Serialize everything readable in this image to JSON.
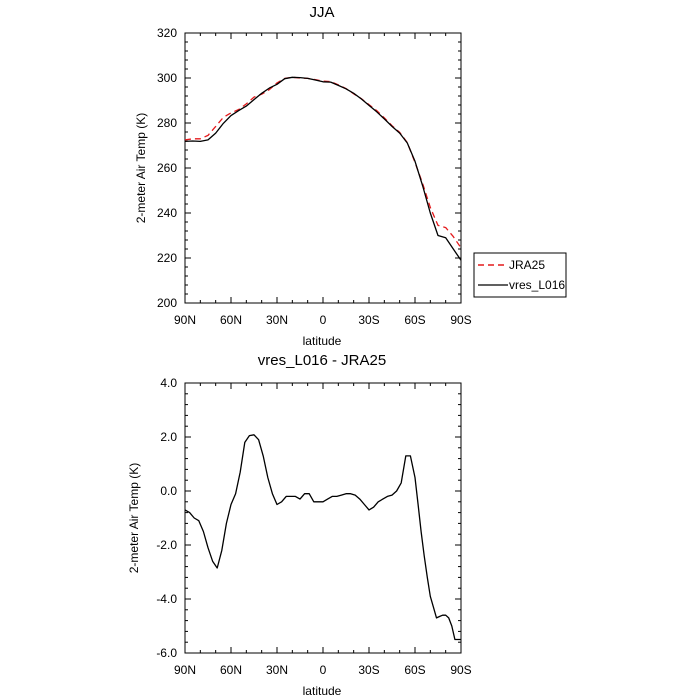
{
  "chart_data": [
    {
      "type": "line",
      "title": "JJA",
      "xlabel": "latitude",
      "ylabel": "2-meter Air Temp (K)",
      "ylim": [
        200,
        320
      ],
      "yticks": [
        "200",
        "220",
        "240",
        "260",
        "280",
        "300",
        "320"
      ],
      "xticks": [
        "90N",
        "60N",
        "30N",
        "0",
        "30S",
        "60S",
        "90S"
      ],
      "legend": {
        "placement": "right",
        "entries": [
          "JRA25",
          "vres_L016"
        ]
      },
      "series": [
        {
          "name": "JRA25",
          "color": "#e41a1c",
          "style": "dashed",
          "x": [
            90,
            85,
            80,
            75,
            70,
            65,
            60,
            55,
            50,
            45,
            40,
            35,
            30,
            25,
            20,
            15,
            10,
            5,
            0,
            -5,
            -10,
            -15,
            -20,
            -25,
            -30,
            -35,
            -40,
            -45,
            -50,
            -55,
            -60,
            -65,
            -70,
            -75,
            -80,
            -85,
            -90
          ],
          "y": [
            272.5,
            273.0,
            273.0,
            274.5,
            278.5,
            282.5,
            284.5,
            286.0,
            288.5,
            291.5,
            292.8,
            294.8,
            297.8,
            299.8,
            300.3,
            300.0,
            299.8,
            299.3,
            298.6,
            298.4,
            297.0,
            295.3,
            293.0,
            290.8,
            288.2,
            285.5,
            282.3,
            278.8,
            275.8,
            271.3,
            262.5,
            253.0,
            242.5,
            234.5,
            233.5,
            229.5,
            224.5
          ]
        },
        {
          "name": "vres_L016",
          "color": "#000000",
          "style": "solid",
          "x": [
            90,
            85,
            80,
            75,
            70,
            65,
            60,
            55,
            50,
            45,
            40,
            35,
            30,
            25,
            20,
            15,
            10,
            5,
            0,
            -5,
            -10,
            -15,
            -20,
            -25,
            -30,
            -35,
            -40,
            -45,
            -50,
            -55,
            -60,
            -65,
            -70,
            -75,
            -80,
            -85,
            -90
          ],
          "y": [
            271.8,
            272.0,
            271.8,
            272.5,
            275.5,
            279.8,
            283.3,
            285.5,
            287.5,
            290.4,
            293.2,
            295.5,
            297.2,
            299.7,
            300.3,
            300.2,
            299.8,
            299.1,
            298.3,
            298.2,
            296.7,
            295.2,
            293.2,
            290.7,
            287.8,
            285.0,
            281.8,
            278.5,
            275.5,
            271.1,
            263.0,
            252.0,
            240.0,
            230.0,
            229.0,
            224.0,
            219.0
          ]
        }
      ]
    },
    {
      "type": "line",
      "title": "vres_L016 - JRA25",
      "xlabel": "latitude",
      "ylabel": "2-meter Air Temp (K)",
      "ylim": [
        -6,
        4
      ],
      "yticks": [
        "-6.0",
        "-4.0",
        "-2.0",
        "0.0",
        "2.0",
        "4.0"
      ],
      "xticks": [
        "90N",
        "60N",
        "30N",
        "0",
        "30S",
        "60S",
        "90S"
      ],
      "series": [
        {
          "color": "#000000",
          "style": "solid",
          "x": [
            90,
            87,
            84,
            81,
            78,
            75,
            72,
            69,
            66,
            63,
            60,
            57,
            54,
            51,
            48,
            45,
            42,
            39,
            36,
            33,
            30,
            27,
            24,
            21,
            18,
            15,
            12,
            9,
            6,
            3,
            0,
            -3,
            -6,
            -9,
            -12,
            -15,
            -18,
            -21,
            -24,
            -27,
            -30,
            -33,
            -36,
            -39,
            -42,
            -45,
            -48,
            -51,
            -54,
            -57,
            -60,
            -62,
            -64,
            -66,
            -68,
            -70,
            -72,
            -74,
            -76,
            -78,
            -80,
            -82,
            -84,
            -86,
            -88,
            -90
          ],
          "y": [
            -0.7,
            -0.8,
            -1.0,
            -1.1,
            -1.5,
            -2.1,
            -2.6,
            -2.85,
            -2.2,
            -1.2,
            -0.5,
            -0.1,
            0.7,
            1.8,
            2.05,
            2.08,
            1.9,
            1.3,
            0.5,
            -0.1,
            -0.5,
            -0.4,
            -0.2,
            -0.2,
            -0.2,
            -0.3,
            -0.1,
            -0.1,
            -0.4,
            -0.4,
            -0.4,
            -0.3,
            -0.2,
            -0.2,
            -0.15,
            -0.1,
            -0.1,
            -0.15,
            -0.3,
            -0.5,
            -0.7,
            -0.6,
            -0.4,
            -0.3,
            -0.2,
            -0.15,
            0.0,
            0.3,
            1.3,
            1.3,
            0.5,
            -0.5,
            -1.5,
            -2.4,
            -3.2,
            -3.9,
            -4.3,
            -4.7,
            -4.65,
            -4.6,
            -4.6,
            -4.7,
            -5.0,
            -5.5,
            -5.5,
            -5.5
          ]
        }
      ]
    }
  ]
}
